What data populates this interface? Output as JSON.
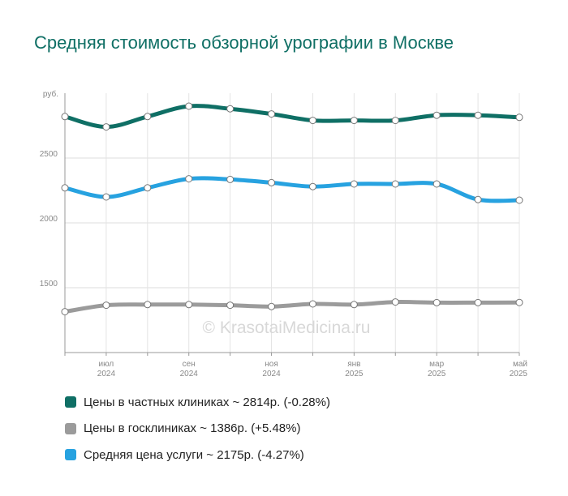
{
  "chart_data": {
    "type": "line",
    "title": "Средняя стоимость обзорной урографии в Москве",
    "unit_label": "руб.",
    "watermark": "© KrasotaiMedicina.ru",
    "ylim": [
      1000,
      3000
    ],
    "yticks": [
      {
        "value": 1500,
        "label": "1500"
      },
      {
        "value": 2000,
        "label": "2000"
      },
      {
        "value": 2500,
        "label": "2500"
      }
    ],
    "grid": true,
    "legend_position": "bottom",
    "x": [
      "2024-05",
      "2024-07",
      "2024-08",
      "2024-09",
      "2024-10",
      "2024-11",
      "2024-12",
      "2025-01",
      "2025-02",
      "2025-03",
      "2025-04",
      "2025-05"
    ],
    "x_tick_labels": [
      {
        "index": 1,
        "month": "июл",
        "year": "2024"
      },
      {
        "index": 3,
        "month": "сен",
        "year": "2024"
      },
      {
        "index": 5,
        "month": "ноя",
        "year": "2024"
      },
      {
        "index": 7,
        "month": "янв",
        "year": "2025"
      },
      {
        "index": 9,
        "month": "мар",
        "year": "2025"
      },
      {
        "index": 11,
        "month": "май",
        "year": "2025"
      }
    ],
    "series": [
      {
        "name": "Цены в частных клиниках",
        "legend": "Цены в частных клиниках ~ 2814р. (-0.28%)",
        "color": "#0f6f65",
        "values": [
          2820,
          2740,
          2820,
          2900,
          2880,
          2840,
          2790,
          2790,
          2790,
          2830,
          2830,
          2814
        ]
      },
      {
        "name": "Цены в госклиниках",
        "legend": "Цены в госклиниках ~ 1386р. (+5.48%)",
        "color": "#9b9b9b",
        "values": [
          1315,
          1365,
          1370,
          1370,
          1365,
          1355,
          1375,
          1370,
          1390,
          1385,
          1385,
          1386
        ]
      },
      {
        "name": "Средняя цена услуги",
        "legend": "Средняя цена услуги ~ 2175р. (-4.27%)",
        "color": "#27a2e0",
        "values": [
          2270,
          2200,
          2270,
          2340,
          2335,
          2310,
          2280,
          2300,
          2300,
          2300,
          2180,
          2175
        ]
      }
    ]
  }
}
